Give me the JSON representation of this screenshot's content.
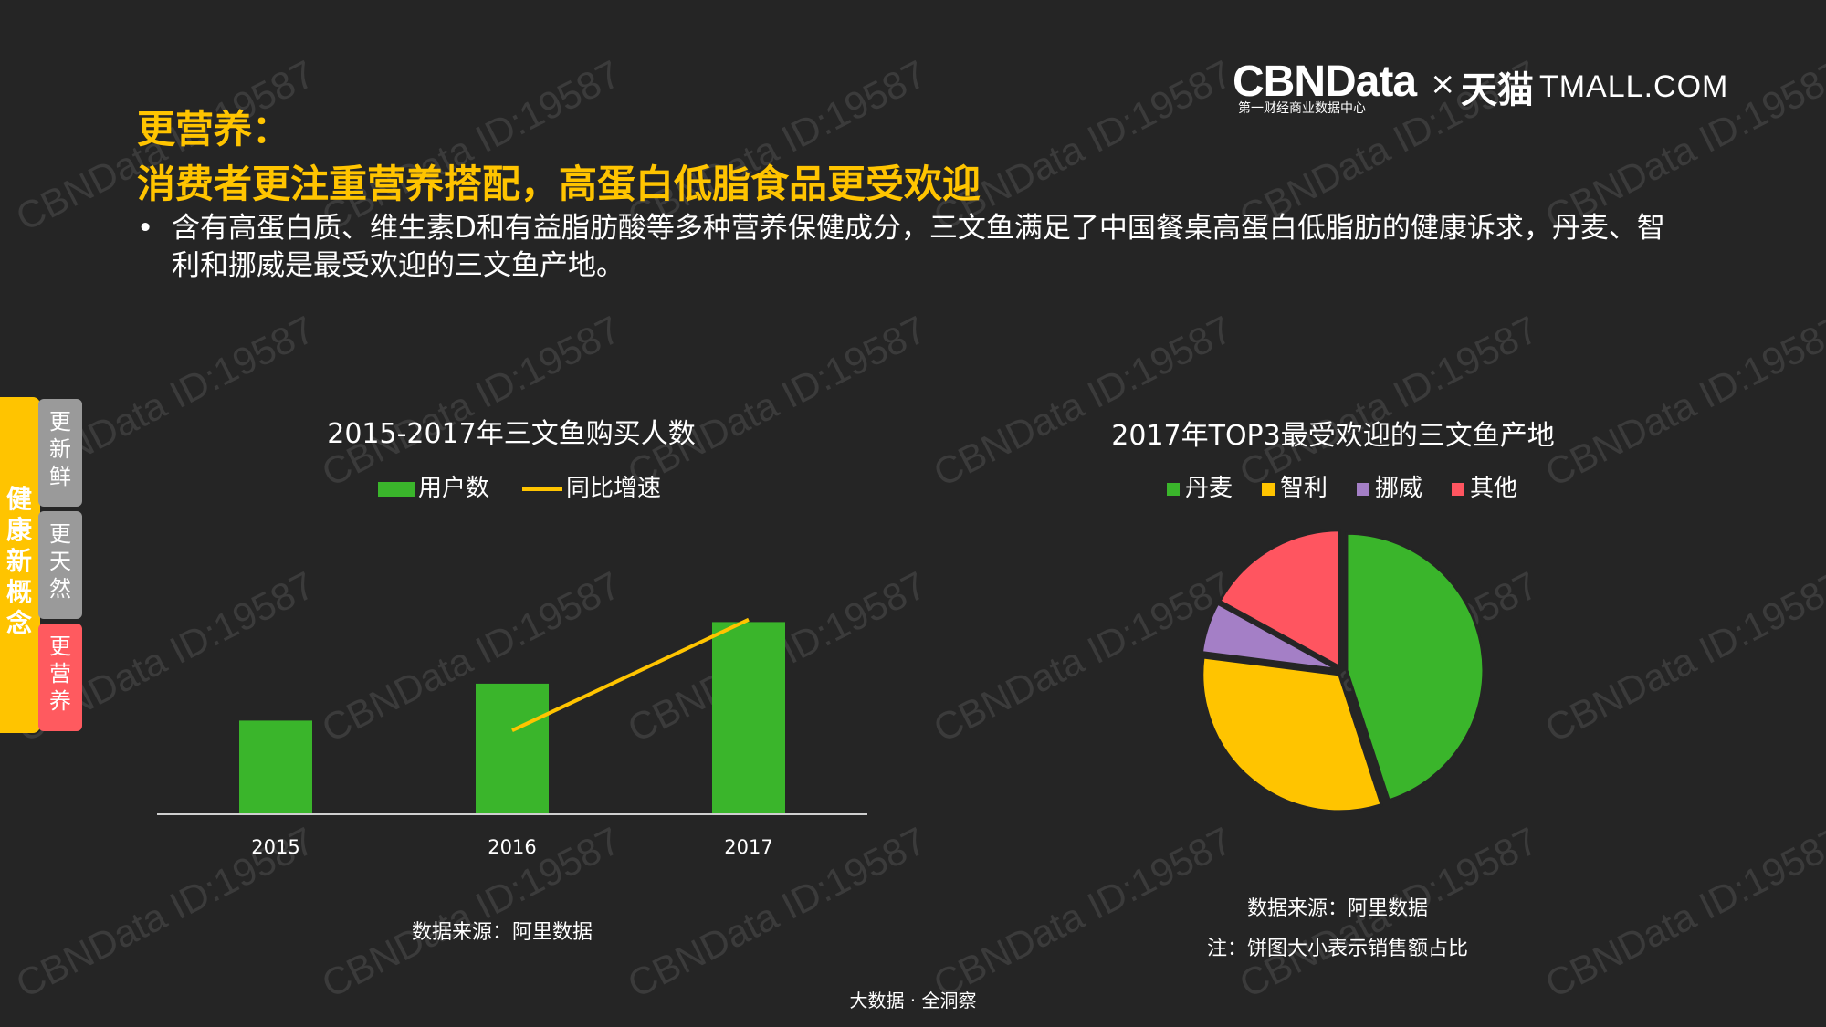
{
  "header": {
    "title_line1": "更营养：",
    "title_line2": "消费者更注重营养搭配，高蛋白低脂食品更受欢迎",
    "bullet": "含有高蛋白质、维生素D和有益脂肪酸等多种营养保健成分，三文鱼满足了中国餐桌高蛋白低脂肪的健康诉求，丹麦、智利和挪威是最受欢迎的三文鱼产地。",
    "bullet_marker": "•"
  },
  "logo": {
    "cbndata": "CBNData",
    "cbndata_sub": "第一财经商业数据中心",
    "times": "×",
    "tmall_cn": "天猫",
    "tmall_en": "TMALL.COM"
  },
  "watermark_text": "CBNData ID:19587",
  "side": {
    "main_label": "健康新概念",
    "tabs": [
      "更新鲜",
      "更天然",
      "更营养"
    ]
  },
  "colors": {
    "accent": "#ffc400",
    "green": "#3ab52b",
    "yellow": "#ffc400",
    "purple": "#a47fc6",
    "red": "#ff5560",
    "background": "#252525"
  },
  "chart_data": [
    {
      "type": "bar",
      "title": "2015-2017年三文鱼购买人数",
      "categories": [
        "2015",
        "2016",
        "2017"
      ],
      "series": [
        {
          "name": "用户数",
          "type": "bar",
          "values": [
            38,
            53,
            78
          ]
        },
        {
          "name": "同比增速",
          "type": "line",
          "values": [
            null,
            34,
            79
          ]
        }
      ],
      "ylim": [
        0,
        100
      ],
      "source": "数据来源：阿里数据",
      "legend": "top"
    },
    {
      "type": "pie",
      "title": "2017年TOP3最受欢迎的三文鱼产地",
      "labels": [
        "丹麦",
        "智利",
        "挪威",
        "其他"
      ],
      "values": [
        45,
        32,
        6,
        17
      ],
      "source": "数据来源：阿里数据",
      "note": "注：饼图大小表示销售额占比",
      "legend": "top"
    }
  ],
  "footer": "大数据 · 全洞察"
}
